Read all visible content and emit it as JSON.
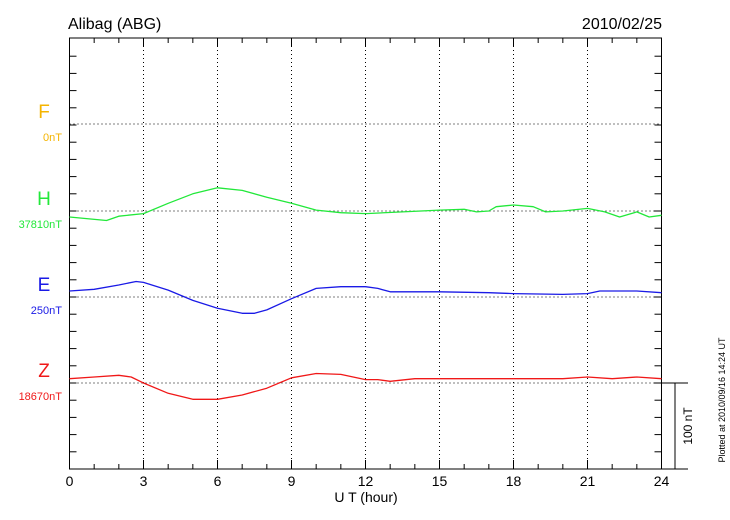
{
  "header": {
    "station": "Alibag (ABG)",
    "date": "2010/02/25"
  },
  "footer": {
    "plotted": "Plotted at 2010/09/16 14:24 UT",
    "scale_label": "100 nT"
  },
  "chart_data": {
    "type": "line",
    "title": "Alibag (ABG)",
    "xlabel": "U T (hour)",
    "ylabel": "",
    "xlim": [
      0,
      24
    ],
    "x_ticks": [
      "0",
      "3",
      "6",
      "9",
      "12",
      "15",
      "18",
      "21",
      "24"
    ],
    "grid": true,
    "scale_bar_nT": 100,
    "series": [
      {
        "name": "F",
        "baseline_label": "0nT",
        "color": "#f5b400",
        "x": [],
        "values": []
      },
      {
        "name": "H",
        "baseline_label": "37810nT",
        "color": "#22e83a",
        "x": [
          0,
          1.5,
          2,
          3,
          4,
          5,
          6,
          7,
          8,
          9,
          10,
          11,
          12,
          13.5,
          15,
          16,
          16.5,
          17,
          17.3,
          18,
          18.8,
          19.3,
          20,
          21,
          21.7,
          22.3,
          23,
          23.5,
          24
        ],
        "values": [
          -7,
          -11,
          -6,
          -3,
          9,
          20,
          27,
          24,
          16,
          9,
          1,
          -2,
          -3,
          -1,
          1,
          2,
          -1,
          0,
          5,
          7,
          5,
          -1,
          0,
          3,
          -1,
          -7,
          -1,
          -7,
          -5
        ]
      },
      {
        "name": "E",
        "baseline_label": "250nT",
        "color": "#1a1ae6",
        "x": [
          0,
          1,
          2,
          2.7,
          3,
          4,
          5,
          6,
          7,
          7.5,
          8,
          9,
          10,
          11,
          12,
          12.5,
          13,
          15,
          17,
          18,
          20,
          21,
          21.5,
          23,
          24
        ],
        "values": [
          7,
          9,
          14,
          18,
          17,
          8,
          -4,
          -13,
          -19,
          -19,
          -15,
          -2,
          10,
          12,
          12,
          10,
          6,
          6,
          5,
          4,
          3,
          4,
          7,
          7,
          5
        ]
      },
      {
        "name": "Z",
        "baseline_label": "18670nT",
        "color": "#f01818",
        "x": [
          0,
          1,
          2,
          2.5,
          3,
          4,
          5,
          6,
          7,
          8,
          9,
          10,
          11,
          12,
          12.5,
          13,
          14,
          16,
          18,
          20,
          21,
          22,
          23,
          24
        ],
        "values": [
          5,
          7,
          9,
          7,
          0,
          -12,
          -19,
          -19,
          -14,
          -6,
          6,
          11,
          10,
          4,
          4,
          2,
          5,
          5,
          5,
          5,
          7,
          5,
          7,
          5
        ]
      }
    ]
  }
}
